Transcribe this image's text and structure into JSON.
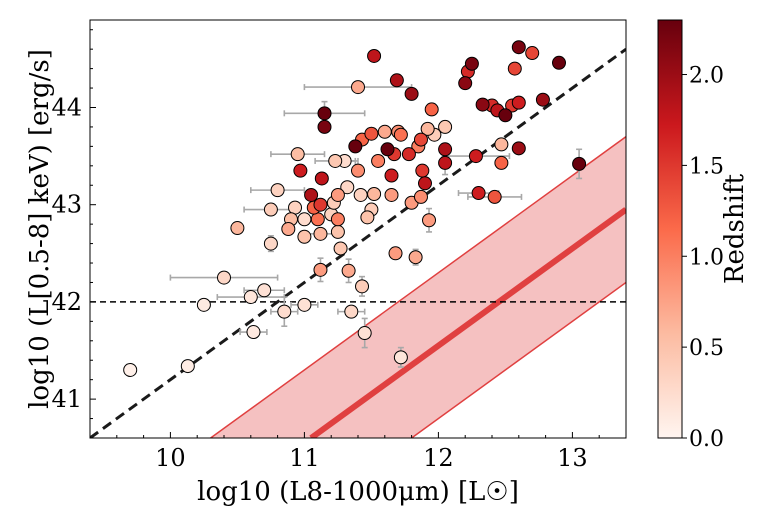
{
  "chart_data": {
    "type": "scatter",
    "title": "",
    "xlabel": "log10 (L8-1000μm) [L☉]",
    "ylabel": "log10 (L[0.5-8] keV) [erg/s]",
    "xlim": [
      9.4,
      13.4
    ],
    "ylim": [
      40.6,
      44.9
    ],
    "xticks": [
      10,
      11,
      12,
      13
    ],
    "xtick_labels": [
      "10",
      "11",
      "12",
      "13"
    ],
    "yticks": [
      41,
      42,
      43,
      44
    ],
    "ytick_labels": [
      "41",
      "42",
      "43",
      "44"
    ],
    "grid": false,
    "colorbar": {
      "label": "Redshift",
      "range": [
        0.0,
        2.3
      ],
      "ticks": [
        0.0,
        0.5,
        1.0,
        1.5,
        2.0
      ],
      "tick_labels": [
        "0.0",
        "0.5",
        "1.0",
        "1.5",
        "2.0"
      ],
      "colors": [
        "#fff5f0",
        "#fcbba1",
        "#fb6a4a",
        "#cb181d",
        "#67000d"
      ]
    },
    "reference_lines": [
      {
        "name": "horizontal-threshold",
        "style": "dashed",
        "color": "#000000",
        "y": 42.0
      },
      {
        "name": "diagonal-dashed",
        "style": "dashed",
        "color": "#1a1a1a",
        "x": [
          9.4,
          13.4
        ],
        "y": [
          40.6,
          44.6
        ]
      },
      {
        "name": "relation-center",
        "style": "solid",
        "color": "#e04040",
        "x": [
          11.05,
          13.4
        ],
        "y": [
          40.6,
          42.95
        ]
      },
      {
        "name": "relation-band-upper",
        "style": "solid",
        "color": "#e04040",
        "x": [
          10.3,
          13.4
        ],
        "y": [
          40.6,
          43.7
        ]
      },
      {
        "name": "relation-band-lower",
        "style": "solid",
        "color": "#e04040",
        "x": [
          11.8,
          13.4
        ],
        "y": [
          40.6,
          42.2
        ]
      }
    ],
    "band_fill": "#f4baba",
    "points": [
      {
        "x": 9.7,
        "y": 41.3,
        "z": 0.05
      },
      {
        "x": 10.13,
        "y": 41.34,
        "z": 0.08
      },
      {
        "x": 10.25,
        "y": 41.97,
        "z": 0.1
      },
      {
        "x": 10.4,
        "y": 42.25,
        "z": 0.3,
        "xerr": 0.4
      },
      {
        "x": 10.6,
        "y": 42.05,
        "z": 0.15,
        "xerr": 0.25
      },
      {
        "x": 10.62,
        "y": 41.69,
        "z": 0.12,
        "xerr": 0.1
      },
      {
        "x": 10.7,
        "y": 42.12,
        "z": 0.2,
        "xerr": 0.15
      },
      {
        "x": 10.5,
        "y": 42.76,
        "z": 0.6
      },
      {
        "x": 10.75,
        "y": 42.6,
        "z": 0.3,
        "yerr": 0.08
      },
      {
        "x": 10.75,
        "y": 42.95,
        "z": 0.4,
        "xerr": 0.2
      },
      {
        "x": 10.8,
        "y": 43.15,
        "z": 0.35,
        "xerr": 0.2
      },
      {
        "x": 10.85,
        "y": 41.9,
        "z": 0.25,
        "xerr": 0.1,
        "yerr": 0.15
      },
      {
        "x": 10.88,
        "y": 42.75,
        "z": 0.7
      },
      {
        "x": 10.9,
        "y": 42.85,
        "z": 0.55
      },
      {
        "x": 10.93,
        "y": 42.97,
        "z": 0.35
      },
      {
        "x": 10.95,
        "y": 43.52,
        "z": 0.55,
        "xerr": 0.2
      },
      {
        "x": 10.97,
        "y": 43.35,
        "z": 1.7
      },
      {
        "x": 11.0,
        "y": 42.85,
        "z": 0.25
      },
      {
        "x": 11.0,
        "y": 42.67,
        "z": 0.5
      },
      {
        "x": 11.0,
        "y": 41.97,
        "z": 0.2,
        "xerr": 0.1
      },
      {
        "x": 11.05,
        "y": 43.1,
        "z": 1.9
      },
      {
        "x": 11.07,
        "y": 42.97,
        "z": 1.2
      },
      {
        "x": 11.1,
        "y": 42.85,
        "z": 1.1
      },
      {
        "x": 11.12,
        "y": 42.7,
        "z": 0.6,
        "xerr": 0.15
      },
      {
        "x": 11.12,
        "y": 42.33,
        "z": 0.8,
        "yerr": 0.12
      },
      {
        "x": 11.12,
        "y": 43.0,
        "z": 1.5
      },
      {
        "x": 11.13,
        "y": 43.27,
        "z": 1.8
      },
      {
        "x": 11.15,
        "y": 43.94,
        "z": 2.3,
        "xerr": 0.3,
        "yerr": 0.12
      },
      {
        "x": 11.15,
        "y": 43.8,
        "z": 2.2
      },
      {
        "x": 11.2,
        "y": 42.9,
        "z": 0.35
      },
      {
        "x": 11.22,
        "y": 43.02,
        "z": 0.4
      },
      {
        "x": 11.23,
        "y": 43.45,
        "z": 0.45,
        "xerr": 0.15
      },
      {
        "x": 11.25,
        "y": 43.1,
        "z": 0.8
      },
      {
        "x": 11.25,
        "y": 42.85,
        "z": 1.0
      },
      {
        "x": 11.25,
        "y": 42.72,
        "z": 0.5
      },
      {
        "x": 11.27,
        "y": 42.55,
        "z": 0.45
      },
      {
        "x": 11.3,
        "y": 43.45,
        "z": 0.25,
        "xerr": 0.1
      },
      {
        "x": 11.32,
        "y": 43.18,
        "z": 0.3
      },
      {
        "x": 11.33,
        "y": 42.32,
        "z": 0.7,
        "yerr": 0.12
      },
      {
        "x": 11.35,
        "y": 41.9,
        "z": 0.3,
        "xerr": 0.1
      },
      {
        "x": 11.38,
        "y": 43.6,
        "z": 2.3
      },
      {
        "x": 11.4,
        "y": 44.21,
        "z": 0.7,
        "xerr": 0.4
      },
      {
        "x": 11.4,
        "y": 43.35,
        "z": 0.9
      },
      {
        "x": 11.42,
        "y": 43.1,
        "z": 0.35
      },
      {
        "x": 11.43,
        "y": 43.67,
        "z": 1.2
      },
      {
        "x": 11.43,
        "y": 42.16,
        "z": 0.4,
        "yerr": 0.1
      },
      {
        "x": 11.45,
        "y": 41.68,
        "z": 0.2,
        "yerr": 0.15
      },
      {
        "x": 11.47,
        "y": 42.87,
        "z": 0.5
      },
      {
        "x": 11.5,
        "y": 42.95,
        "z": 0.4
      },
      {
        "x": 11.5,
        "y": 43.73,
        "z": 1.3
      },
      {
        "x": 11.52,
        "y": 43.11,
        "z": 0.6
      },
      {
        "x": 11.52,
        "y": 44.53,
        "z": 1.8
      },
      {
        "x": 11.55,
        "y": 43.45,
        "z": 1.0
      },
      {
        "x": 11.6,
        "y": 43.75,
        "z": 0.7
      },
      {
        "x": 11.62,
        "y": 43.57,
        "z": 2.3
      },
      {
        "x": 11.65,
        "y": 43.3,
        "z": 1.7
      },
      {
        "x": 11.65,
        "y": 43.1,
        "z": 0.8
      },
      {
        "x": 11.67,
        "y": 43.52,
        "z": 1.5
      },
      {
        "x": 11.68,
        "y": 42.5,
        "z": 0.8
      },
      {
        "x": 11.69,
        "y": 44.28,
        "z": 1.9
      },
      {
        "x": 11.7,
        "y": 43.75,
        "z": 0.9
      },
      {
        "x": 11.72,
        "y": 43.72,
        "z": 1.1
      },
      {
        "x": 11.72,
        "y": 41.43,
        "z": 0.15,
        "yerr": 0.1
      },
      {
        "x": 11.78,
        "y": 43.52,
        "z": 1.6
      },
      {
        "x": 11.8,
        "y": 43.02,
        "z": 0.8
      },
      {
        "x": 11.8,
        "y": 44.14,
        "z": 2.0
      },
      {
        "x": 11.83,
        "y": 42.46,
        "z": 0.7,
        "yerr": 0.08
      },
      {
        "x": 11.85,
        "y": 43.6,
        "z": 1.0
      },
      {
        "x": 11.87,
        "y": 43.67,
        "z": 1.4
      },
      {
        "x": 11.87,
        "y": 43.08,
        "z": 0.9
      },
      {
        "x": 11.88,
        "y": 43.35,
        "z": 1.5
      },
      {
        "x": 11.9,
        "y": 43.22,
        "z": 1.8
      },
      {
        "x": 11.92,
        "y": 43.78,
        "z": 0.6
      },
      {
        "x": 11.93,
        "y": 42.84,
        "z": 0.8,
        "yerr": 0.12
      },
      {
        "x": 11.95,
        "y": 43.98,
        "z": 1.2
      },
      {
        "x": 11.97,
        "y": 43.72,
        "z": 0.4
      },
      {
        "x": 12.05,
        "y": 43.8,
        "z": 0.45
      },
      {
        "x": 12.05,
        "y": 43.43,
        "z": 1.8,
        "yerr": 0.12
      },
      {
        "x": 12.05,
        "y": 43.57,
        "z": 1.9
      },
      {
        "x": 12.2,
        "y": 44.25,
        "z": 2.1
      },
      {
        "x": 12.22,
        "y": 44.37,
        "z": 1.6
      },
      {
        "x": 12.25,
        "y": 44.45,
        "z": 2.2
      },
      {
        "x": 12.28,
        "y": 43.5,
        "z": 1.7,
        "xerr": 0.25
      },
      {
        "x": 12.3,
        "y": 43.12,
        "z": 1.7,
        "xerr": 0.15
      },
      {
        "x": 12.33,
        "y": 44.03,
        "z": 2.1
      },
      {
        "x": 12.4,
        "y": 44.02,
        "z": 1.6
      },
      {
        "x": 12.42,
        "y": 43.08,
        "z": 1.3,
        "xerr": 0.2
      },
      {
        "x": 12.44,
        "y": 43.97,
        "z": 1.8
      },
      {
        "x": 12.47,
        "y": 43.43,
        "z": 1.2
      },
      {
        "x": 12.47,
        "y": 43.62,
        "z": 0.6
      },
      {
        "x": 12.5,
        "y": 43.92,
        "z": 2.3
      },
      {
        "x": 12.55,
        "y": 44.02,
        "z": 1.5
      },
      {
        "x": 12.57,
        "y": 44.4,
        "z": 1.4
      },
      {
        "x": 12.6,
        "y": 44.62,
        "z": 2.2
      },
      {
        "x": 12.6,
        "y": 44.05,
        "z": 1.7
      },
      {
        "x": 12.6,
        "y": 43.58,
        "z": 2.0
      },
      {
        "x": 12.7,
        "y": 44.56,
        "z": 1.4
      },
      {
        "x": 12.78,
        "y": 44.08,
        "z": 2.0
      },
      {
        "x": 12.9,
        "y": 44.46,
        "z": 2.3
      },
      {
        "x": 13.05,
        "y": 43.42,
        "z": 2.3,
        "yerr": 0.15
      }
    ]
  }
}
